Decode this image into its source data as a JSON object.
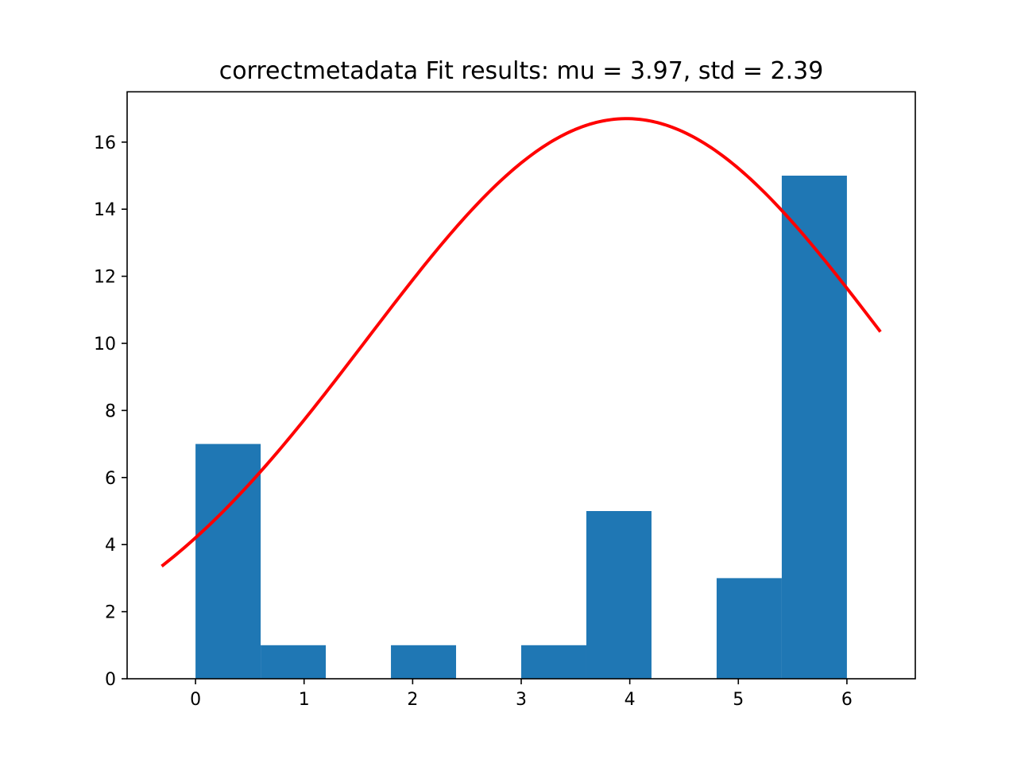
{
  "chart_data": {
    "type": "bar",
    "title": "correctmetadata Fit results: mu = 3.97,  std = 2.39",
    "xlabel": "",
    "ylabel": "",
    "xlim": [
      -0.63,
      6.63
    ],
    "ylim": [
      0,
      17.5
    ],
    "xticks": [
      "0",
      "1",
      "2",
      "3",
      "4",
      "5",
      "6"
    ],
    "yticks": [
      "0",
      "2",
      "4",
      "6",
      "8",
      "10",
      "12",
      "14",
      "16"
    ],
    "grid": false,
    "legend": "none",
    "histogram": {
      "name": "",
      "bin_edges": [
        0,
        0.6,
        1.2,
        1.8,
        2.4,
        3.0,
        3.6,
        4.2,
        4.8,
        5.4,
        6.0
      ],
      "counts": [
        7,
        1,
        0,
        1,
        0,
        1,
        5,
        0,
        3,
        15
      ],
      "color": "#1f77b4"
    },
    "fit_curve": {
      "name": "",
      "distribution": "normal",
      "mu": 3.97,
      "std": 2.39,
      "peak": 16.7,
      "x_range": [
        -0.3,
        6.3
      ],
      "color": "#ff0000"
    }
  }
}
